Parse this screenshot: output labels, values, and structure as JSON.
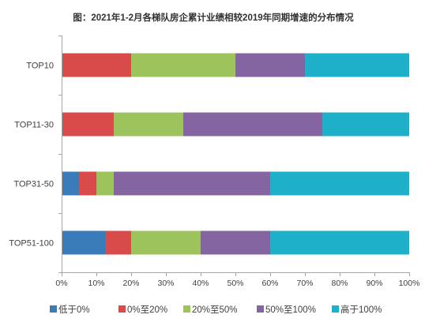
{
  "chart_data": {
    "type": "bar",
    "orientation": "horizontal",
    "stacked": true,
    "title": "图：2021年1-2月各梯队房企累计业绩相较2019年同期增速的分布情况",
    "categories": [
      "TOP10",
      "TOP11-30",
      "TOP31-50",
      "TOP51-100"
    ],
    "series": [
      {
        "name": "低于0%",
        "color": "#3a7cba",
        "values": [
          0,
          0,
          5,
          12.5
        ]
      },
      {
        "name": "0%至20%",
        "color": "#d94b4b",
        "values": [
          20,
          15,
          5,
          7.5
        ]
      },
      {
        "name": "20%至50%",
        "color": "#9dc35c",
        "values": [
          30,
          20,
          5,
          20
        ]
      },
      {
        "name": "50%至100%",
        "color": "#8564a2",
        "values": [
          20,
          40,
          45,
          20
        ]
      },
      {
        "name": "高于100%",
        "color": "#1eb0c8",
        "values": [
          30,
          25,
          40,
          40
        ]
      }
    ],
    "xlim": [
      0,
      100
    ],
    "x_tick_values": [
      0,
      10,
      20,
      30,
      40,
      50,
      60,
      70,
      80,
      90,
      100
    ],
    "x_tick_labels": [
      "0%",
      "10%",
      "20%",
      "30%",
      "40%",
      "50%",
      "60%",
      "70%",
      "80%",
      "90%",
      "100%"
    ],
    "grid": false,
    "legend_position": "bottom"
  }
}
